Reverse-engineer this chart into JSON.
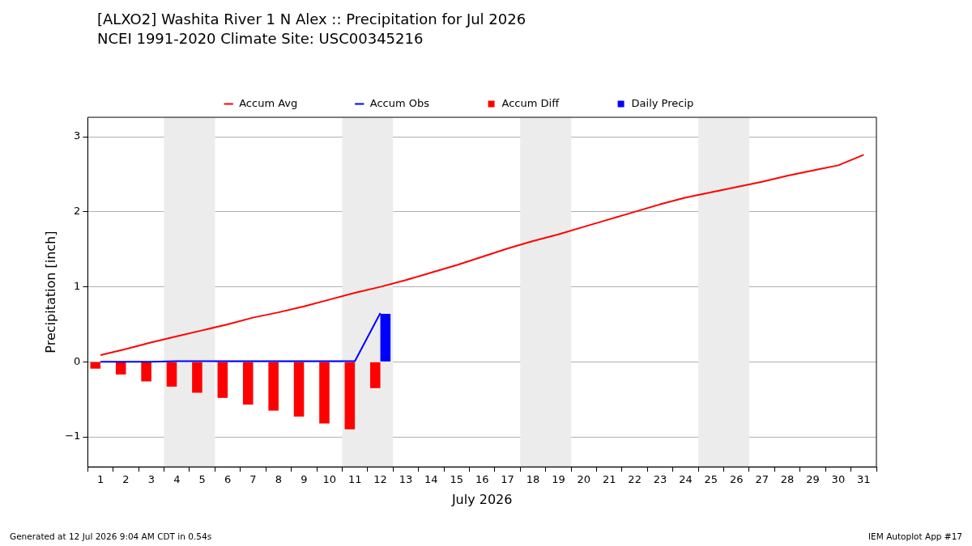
{
  "chart_data": {
    "type": "bar",
    "title": "[ALXO2] Washita River 1 N Alex :: Precipitation for Jul 2026",
    "subtitle": "NCEI 1991-2020 Climate Site: USC00345216",
    "xlabel": "July 2026",
    "ylabel": "Precipitation [inch]",
    "x": [
      1,
      2,
      3,
      4,
      5,
      6,
      7,
      8,
      9,
      10,
      11,
      12,
      13,
      14,
      15,
      16,
      17,
      18,
      19,
      20,
      21,
      22,
      23,
      24,
      25,
      26,
      27,
      28,
      29,
      30,
      31
    ],
    "series": [
      {
        "name": "Accum Avg",
        "type": "line",
        "color": "#ff0000",
        "values": [
          0.09,
          0.17,
          0.26,
          0.34,
          0.42,
          0.5,
          0.59,
          0.66,
          0.74,
          0.83,
          0.92,
          1.0,
          1.09,
          1.19,
          1.29,
          1.4,
          1.51,
          1.61,
          1.7,
          1.8,
          1.9,
          2.0,
          2.1,
          2.19,
          2.26,
          2.33,
          2.4,
          2.48,
          2.55,
          2.62,
          2.76
        ]
      },
      {
        "name": "Accum Obs",
        "type": "line",
        "color": "#0000ff",
        "values": [
          0,
          0,
          0,
          0.01,
          0.01,
          0.01,
          0.01,
          0.01,
          0.01,
          0.01,
          0.01,
          0.65,
          null,
          null,
          null,
          null,
          null,
          null,
          null,
          null,
          null,
          null,
          null,
          null,
          null,
          null,
          null,
          null,
          null,
          null,
          null
        ]
      },
      {
        "name": "Accum Diff",
        "color": "#ff0000",
        "values": [
          -0.09,
          -0.17,
          -0.26,
          -0.33,
          -0.41,
          -0.48,
          -0.57,
          -0.65,
          -0.73,
          -0.82,
          -0.9,
          -0.35,
          null,
          null,
          null,
          null,
          null,
          null,
          null,
          null,
          null,
          null,
          null,
          null,
          null,
          null,
          null,
          null,
          null,
          null,
          null
        ]
      },
      {
        "name": "Daily Precip",
        "color": "#0000ff",
        "values": [
          0,
          0,
          0,
          0,
          0,
          0,
          0,
          0,
          0,
          0,
          0,
          0.64,
          null,
          null,
          null,
          null,
          null,
          null,
          null,
          null,
          null,
          null,
          null,
          null,
          null,
          null,
          null,
          null,
          null,
          null,
          null
        ]
      }
    ],
    "xlim": [
      0.5,
      31.5
    ],
    "xticks": [
      1,
      2,
      3,
      4,
      5,
      6,
      7,
      8,
      9,
      10,
      11,
      12,
      13,
      14,
      15,
      16,
      17,
      18,
      19,
      20,
      21,
      22,
      23,
      24,
      25,
      26,
      27,
      28,
      29,
      30,
      31
    ],
    "ylim": [
      -1.4,
      3.26
    ],
    "yticks": [
      {
        "value": -1,
        "label": "−1"
      },
      0,
      1,
      2,
      3
    ],
    "bands": [
      {
        "axis": "x",
        "from": 3.5,
        "to": 5.5,
        "color": "#ececec"
      },
      {
        "axis": "x",
        "from": 10.5,
        "to": 12.5,
        "color": "#ececec"
      },
      {
        "axis": "x",
        "from": 17.5,
        "to": 19.5,
        "color": "#ececec"
      },
      {
        "axis": "x",
        "from": 24.5,
        "to": 26.5,
        "color": "#ececec"
      }
    ],
    "grid": "y",
    "legend": "top",
    "annotations": [
      "Generated at 12 Jul 2026 9:04 AM CDT in 0.54s",
      "IEM Autoplot App #17"
    ]
  }
}
